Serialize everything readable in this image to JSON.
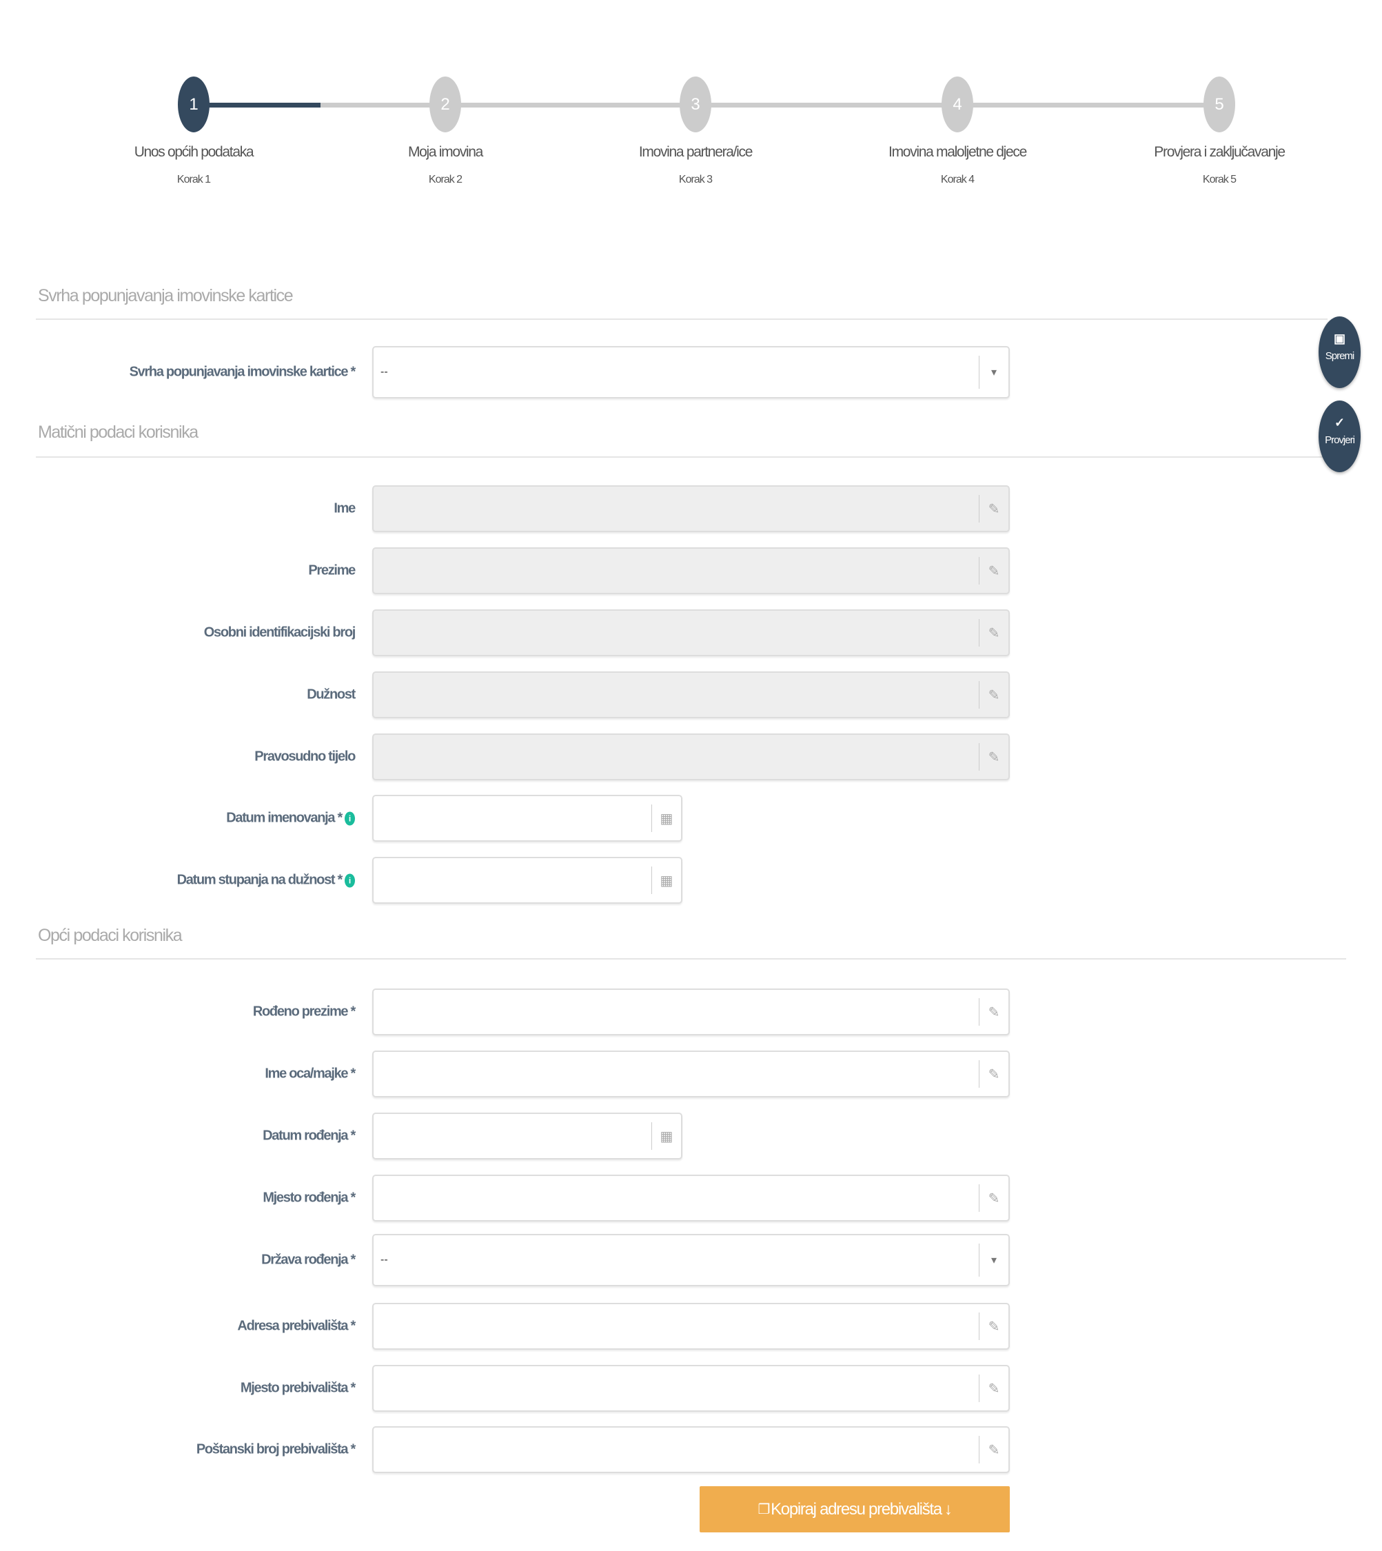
{
  "wizard": {
    "current_step": 1,
    "steps": [
      {
        "number": "1",
        "title": "Unos općih podataka",
        "sub": "Korak 1"
      },
      {
        "number": "2",
        "title": "Moja imovina",
        "sub": "Korak 2"
      },
      {
        "number": "3",
        "title": "Imovina partnera/ice",
        "sub": "Korak 3"
      },
      {
        "number": "4",
        "title": "Imovina maloljetne djece",
        "sub": "Korak 4"
      },
      {
        "number": "5",
        "title": "Provjera i zaključavanje",
        "sub": "Korak 5"
      }
    ]
  },
  "sections": [
    {
      "title": "Svrha popunjavanja imovinske kartice"
    },
    {
      "title": "Matični podaci korisnika"
    },
    {
      "title": "Opći podaci korisnika"
    }
  ],
  "fields": [
    {
      "label": "Svrha popunjavanja imovinske kartice *",
      "type": "select",
      "value": "--",
      "icon": "caret-down-icon"
    },
    {
      "label": "Ime",
      "type": "text",
      "disabled": true,
      "value": "",
      "icon": "pencil-icon"
    },
    {
      "label": "Prezime",
      "type": "text",
      "disabled": true,
      "value": "",
      "icon": "pencil-icon"
    },
    {
      "label": "Osobni identifikacijski broj",
      "type": "text",
      "disabled": true,
      "value": "",
      "icon": "pencil-icon"
    },
    {
      "label": "Dužnost",
      "type": "text",
      "disabled": true,
      "value": "",
      "icon": "pencil-icon"
    },
    {
      "label": "Pravosudno tijelo",
      "type": "text",
      "disabled": true,
      "value": "",
      "icon": "pencil-icon"
    },
    {
      "label": "Datum imenovanja *",
      "type": "date",
      "info": true,
      "value": "",
      "icon": "calendar-icon"
    },
    {
      "label": "Datum stupanja na dužnost *",
      "type": "date",
      "info": true,
      "value": "",
      "icon": "calendar-icon"
    },
    {
      "label": "Rođeno prezime *",
      "type": "text",
      "value": "",
      "icon": "pencil-icon"
    },
    {
      "label": "Ime oca/majke *",
      "type": "text",
      "value": "",
      "icon": "pencil-icon"
    },
    {
      "label": "Datum rođenja *",
      "type": "date",
      "value": "",
      "icon": "calendar-icon"
    },
    {
      "label": "Mjesto rođenja *",
      "type": "text",
      "value": "",
      "icon": "pencil-icon"
    },
    {
      "label": "Država rođenja *",
      "type": "select",
      "value": "--",
      "icon": "caret-down-icon"
    },
    {
      "label": "Adresa prebivališta *",
      "type": "text",
      "value": "",
      "icon": "pencil-icon"
    },
    {
      "label": "Mjesto prebivališta *",
      "type": "text",
      "value": "",
      "icon": "pencil-icon"
    },
    {
      "label": "Poštanski broj prebivališta *",
      "type": "text",
      "value": "",
      "icon": "pencil-icon"
    }
  ],
  "actions": {
    "save_label": "Spremi",
    "check_label": "Provjeri",
    "copy_address_label": "Kopiraj adresu prebivališta"
  },
  "colors": {
    "primary": "#34495e",
    "inactive": "#cccccc",
    "accent": "#f0ad4e",
    "info": "#1abc9c"
  }
}
